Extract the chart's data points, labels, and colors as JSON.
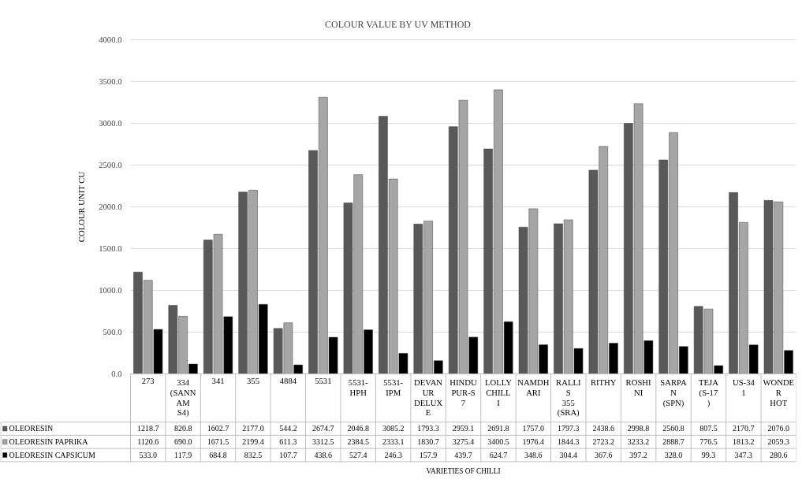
{
  "chart_data": {
    "type": "bar",
    "title": "COLOUR VALUE BY UV METHOD",
    "annotations": [
      "VARIETIES OF CHILLI"
    ],
    "ylabel": "COLOUR UNIT CU",
    "categories": [
      "273",
      "334 (SANNAM S4)",
      "341",
      "355",
      "4884",
      "5531",
      "5531-HPH",
      "5531-IPM",
      "DEVANUR DELUXE",
      "HINDUPUR-S7",
      "LOLLY CHILLI",
      "NAMDHARI",
      "RALLIS 355 (SRA)",
      "RITHY",
      "ROSHINI",
      "SARPAN (SPN)",
      "TEJA (S-17)",
      "US-341",
      "WONDER HOT"
    ],
    "series": [
      {
        "name": "OLEORESIN",
        "color": "#595959",
        "values": [
          1218.7,
          820.8,
          1602.7,
          2177.0,
          544.2,
          2674.7,
          2046.8,
          3085.2,
          1793.3,
          2959.1,
          2691.8,
          1757.0,
          1797.3,
          2438.6,
          2998.8,
          2560.8,
          807.5,
          2170.7,
          2076.0
        ],
        "value_labels": [
          "1218.7",
          "820.8",
          "1602.7",
          "2177.0",
          "544.2",
          "2674.7",
          "2046.8",
          "3085.2",
          "1793.3",
          "2959.1",
          "2691.8",
          "1757.0",
          "1797.3",
          "2438.6",
          "2998.8",
          "2560.8",
          "807.5",
          "2170.7",
          "2076.0"
        ]
      },
      {
        "name": "OLEORESIN PAPRIKA",
        "color": "#a6a6a6",
        "values": [
          1120.6,
          690.0,
          1671.5,
          2199.4,
          611.3,
          3312.5,
          2384.5,
          2333.1,
          1830.7,
          3275.4,
          3400.5,
          1976.4,
          1844.3,
          2723.2,
          3233.2,
          2888.7,
          776.5,
          1813.2,
          2059.3
        ],
        "value_labels": [
          "1120.6",
          "690.0",
          "1671.5",
          "2199.4",
          "611.3",
          "3312.5",
          "2384.5",
          "2333.1",
          "1830.7",
          "3275.4",
          "3400.5",
          "1976.4",
          "1844.3",
          "2723.2",
          "3233.2",
          "2888.7",
          "776.5",
          "1813.2",
          "2059.3"
        ]
      },
      {
        "name": "OLEORESIN CAPSICUM",
        "color": "#000000",
        "values": [
          533.0,
          117.9,
          684.8,
          832.5,
          107.7,
          438.6,
          527.4,
          246.3,
          157.9,
          439.7,
          624.7,
          348.6,
          304.4,
          367.6,
          397.2,
          328.0,
          99.3,
          347.3,
          280.6
        ],
        "value_labels": [
          "533.0",
          "117.9",
          "684.8",
          "832.5",
          "107.7",
          "438.6",
          "527.4",
          "246.3",
          "157.9",
          "439.7",
          "624.7",
          "348.6",
          "304.4",
          "367.6",
          "397.2",
          "328.0",
          "99.3",
          "347.3",
          "280.6"
        ]
      }
    ],
    "ylim": [
      0,
      4000
    ],
    "yticks": [
      {
        "value": 0,
        "label": "0.0"
      },
      {
        "value": 500,
        "label": "500.0"
      },
      {
        "value": 1000,
        "label": "1000.0"
      },
      {
        "value": 1500,
        "label": "1500.0"
      },
      {
        "value": 2000,
        "label": "2000.0"
      },
      {
        "value": 2500,
        "label": "2500.0"
      },
      {
        "value": 3000,
        "label": "3000.0"
      },
      {
        "value": 3500,
        "label": "3500.0"
      },
      {
        "value": 4000,
        "label": "4000.0"
      }
    ],
    "grid": "y",
    "legend": "bottom"
  }
}
